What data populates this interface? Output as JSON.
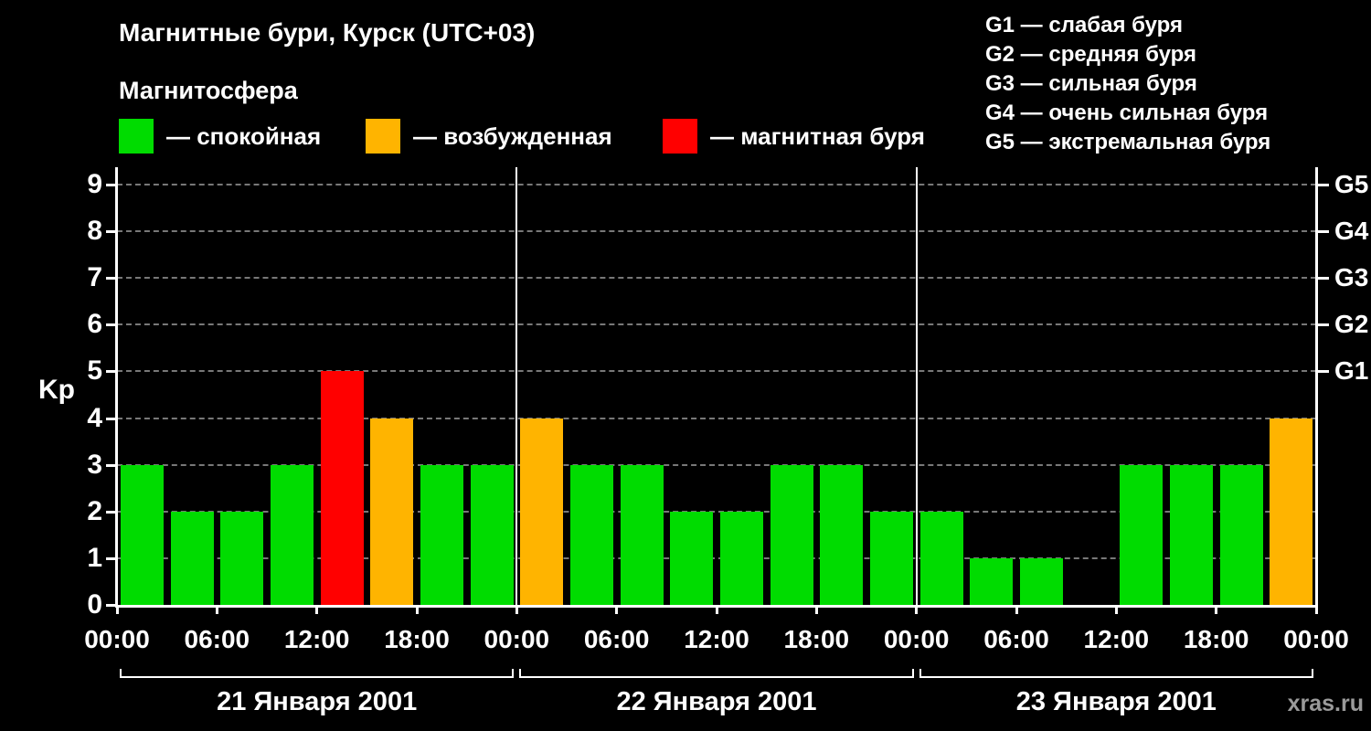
{
  "title": "Магнитные бури, Курск (UTC+03)",
  "subtitle": "Магнитосфера",
  "legend": {
    "items": [
      {
        "name": "quiet",
        "label": "— спокойная",
        "color": "#00DC00"
      },
      {
        "name": "excited",
        "label": "— возбужденная",
        "color": "#FFB400"
      },
      {
        "name": "storm",
        "label": "— магнитная буря",
        "color": "#FF0000"
      }
    ]
  },
  "g_scale_legend": [
    "G1 — слабая буря",
    "G2 — средняя буря",
    "G3 — сильная буря",
    "G4 — очень сильная буря",
    "G5 — экстремальная буря"
  ],
  "watermark": "xras.ru",
  "chart_data": {
    "type": "bar",
    "title": "Магнитные бури, Курск (UTC+03)",
    "ylabel": "Kp",
    "ylim": [
      0,
      9
    ],
    "yticks": [
      0,
      1,
      2,
      3,
      4,
      5,
      6,
      7,
      8,
      9
    ],
    "grid": "dashed horizontal gray lines at each Kp level",
    "legend_position": "top",
    "right_axis_ticks": [
      {
        "label": "G1",
        "value": 5
      },
      {
        "label": "G2",
        "value": 6
      },
      {
        "label": "G3",
        "value": 7
      },
      {
        "label": "G4",
        "value": 8
      },
      {
        "label": "G5",
        "value": 9
      }
    ],
    "x_tick_labels_per_day": [
      "00:00",
      "06:00",
      "12:00",
      "18:00"
    ],
    "x_final_tick_label": "00:00",
    "bar_interval_hours": 3,
    "days": [
      {
        "date": "21 Января 2001",
        "values": [
          3,
          2,
          2,
          3,
          5,
          4,
          3,
          3
        ]
      },
      {
        "date": "22 Января 2001",
        "values": [
          4,
          3,
          3,
          2,
          2,
          3,
          3,
          2
        ]
      },
      {
        "date": "23 Января 2001",
        "values": [
          2,
          1,
          1,
          0,
          3,
          3,
          3,
          4
        ]
      }
    ],
    "color_thresholds": {
      "excited_min": 4,
      "storm_min": 5
    },
    "colors": {
      "quiet": "#00DC00",
      "excited": "#FFB400",
      "storm": "#FF0000"
    }
  }
}
